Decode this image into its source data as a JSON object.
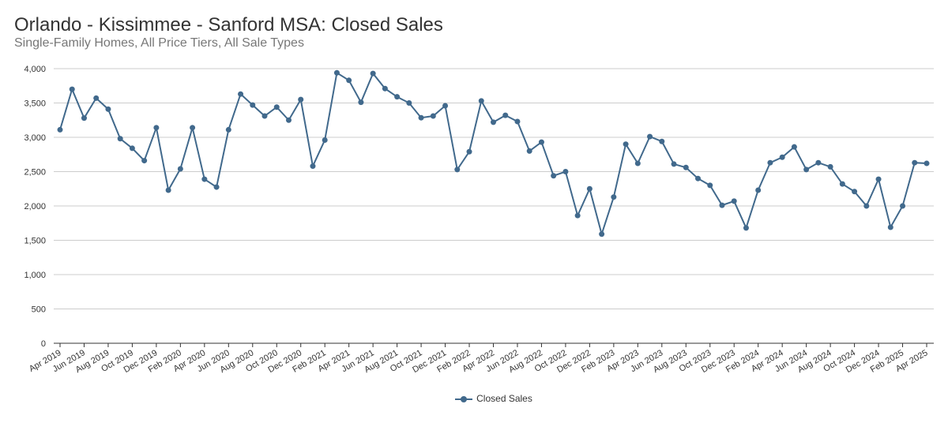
{
  "chart_data": {
    "type": "line",
    "title": "Orlando - Kissimmee - Sanford MSA: Closed Sales",
    "subtitle": "Single-Family Homes, All Price Tiers, All Sale Types",
    "xlabel": "",
    "ylabel": "",
    "ylim": [
      0,
      4000
    ],
    "yticks": [
      "0",
      "500",
      "1,000",
      "1,500",
      "2,000",
      "2,500",
      "3,000",
      "3,500",
      "4,000"
    ],
    "grid": true,
    "legend_position": "bottom",
    "color": "#41698c",
    "x": [
      "Apr 2019",
      "May 2019",
      "Jun 2019",
      "Jul 2019",
      "Aug 2019",
      "Sep 2019",
      "Oct 2019",
      "Nov 2019",
      "Dec 2019",
      "Jan 2020",
      "Feb 2020",
      "Mar 2020",
      "Apr 2020",
      "May 2020",
      "Jun 2020",
      "Jul 2020",
      "Aug 2020",
      "Sep 2020",
      "Oct 2020",
      "Nov 2020",
      "Dec 2020",
      "Jan 2021",
      "Feb 2021",
      "Mar 2021",
      "Apr 2021",
      "May 2021",
      "Jun 2021",
      "Jul 2021",
      "Aug 2021",
      "Sep 2021",
      "Oct 2021",
      "Nov 2021",
      "Dec 2021",
      "Jan 2022",
      "Feb 2022",
      "Mar 2022",
      "Apr 2022",
      "May 2022",
      "Jun 2022",
      "Jul 2022",
      "Aug 2022",
      "Sep 2022",
      "Oct 2022",
      "Nov 2022",
      "Dec 2022",
      "Jan 2023",
      "Feb 2023",
      "Mar 2023",
      "Apr 2023",
      "May 2023",
      "Jun 2023",
      "Jul 2023",
      "Aug 2023",
      "Sep 2023",
      "Oct 2023",
      "Nov 2023",
      "Dec 2023",
      "Jan 2024",
      "Feb 2024",
      "Mar 2024",
      "Apr 2024",
      "May 2024",
      "Jun 2024",
      "Jul 2024",
      "Aug 2024",
      "Sep 2024",
      "Oct 2024",
      "Nov 2024",
      "Dec 2024",
      "Jan 2025",
      "Feb 2025",
      "Mar 2025",
      "Apr 2025"
    ],
    "xticks": [
      "Apr 2019",
      "Jun 2019",
      "Aug 2019",
      "Oct 2019",
      "Dec 2019",
      "Feb 2020",
      "Apr 2020",
      "Jun 2020",
      "Aug 2020",
      "Oct 2020",
      "Dec 2020",
      "Feb 2021",
      "Apr 2021",
      "Jun 2021",
      "Aug 2021",
      "Oct 2021",
      "Dec 2021",
      "Feb 2022",
      "Apr 2022",
      "Jun 2022",
      "Aug 2022",
      "Oct 2022",
      "Dec 2022",
      "Feb 2023",
      "Apr 2023",
      "Jun 2023",
      "Aug 2023",
      "Oct 2023",
      "Dec 2023",
      "Feb 2024",
      "Apr 2024",
      "Jun 2024",
      "Aug 2024",
      "Oct 2024",
      "Dec 2024",
      "Feb 2025",
      "Apr 2025"
    ],
    "series": [
      {
        "name": "Closed Sales",
        "values": [
          3110,
          3700,
          3280,
          3570,
          3410,
          2980,
          2840,
          2660,
          3140,
          2230,
          2540,
          3140,
          2390,
          2275,
          3110,
          3630,
          3470,
          3310,
          3440,
          3250,
          3550,
          2580,
          2960,
          3940,
          3830,
          3510,
          3930,
          3710,
          3590,
          3500,
          3285,
          3310,
          3460,
          2530,
          2790,
          3530,
          3220,
          3320,
          3230,
          2800,
          2930,
          2440,
          2500,
          1860,
          2250,
          1590,
          2130,
          2900,
          2620,
          3010,
          2940,
          2610,
          2560,
          2400,
          2300,
          2010,
          2070,
          1680,
          2230,
          2630,
          2710,
          2860,
          2530,
          2630,
          2570,
          2320,
          2210,
          2000,
          2390,
          1690,
          2000,
          2630,
          2620
        ]
      }
    ]
  }
}
